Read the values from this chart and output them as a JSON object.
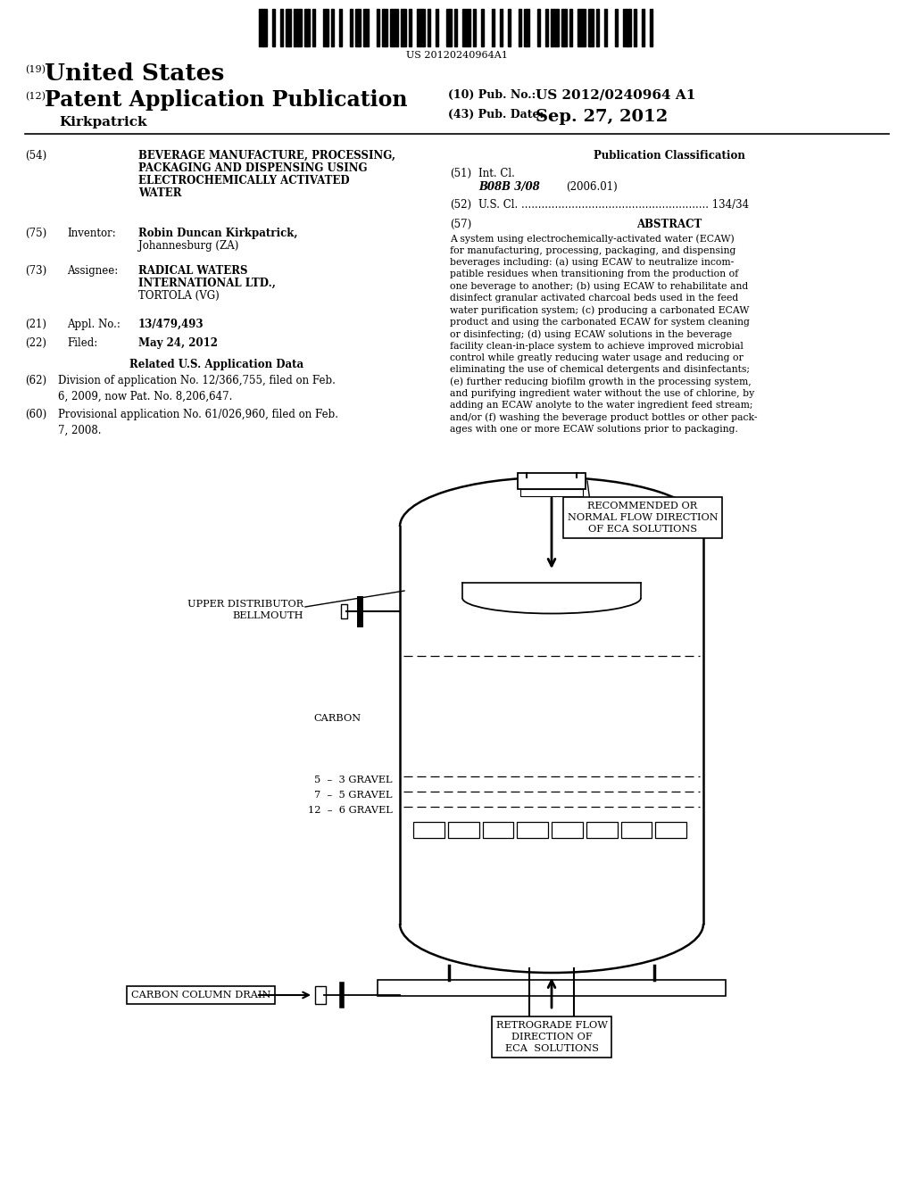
{
  "bg_color": "#ffffff",
  "barcode_text": "US 20120240964A1",
  "title_19": "(19)",
  "title_country": "United States",
  "title_12": "(12)",
  "title_pub": "Patent Application Publication",
  "title_inventor": "Kirkpatrick",
  "pub_no_label": "(10) Pub. No.:",
  "pub_no_value": "US 2012/0240964 A1",
  "pub_date_label": "(43) Pub. Date:",
  "pub_date_value": "Sep. 27, 2012",
  "field54_num": "(54)",
  "field54_text_line1": "BEVERAGE MANUFACTURE, PROCESSING,",
  "field54_text_line2": "PACKAGING AND DISPENSING USING",
  "field54_text_line3": "ELECTROCHEMICALLY ACTIVATED",
  "field54_text_line4": "WATER",
  "pub_class_header": "Publication Classification",
  "field51_num": "(51)",
  "field51_label": "Int. Cl.",
  "field51_class": "B08B 3/08",
  "field51_year": "(2006.01)",
  "field52_num": "(52)",
  "field52_text": "U.S. Cl. ........................................................ 134/34",
  "field75_num": "(75)",
  "field75_label": "Inventor:",
  "field75_val1": "Robin Duncan Kirkpatrick,",
  "field75_val2": "Johannesburg (ZA)",
  "field57_num": "(57)",
  "field57_label": "ABSTRACT",
  "abstract_text": "A system using electrochemically-activated water (ECAW)\nfor manufacturing, processing, packaging, and dispensing\nbeverages including: (a) using ECAW to neutralize incom-\npatible residues when transitioning from the production of\none beverage to another; (b) using ECAW to rehabilitate and\ndisinfect granular activated charcoal beds used in the feed\nwater purification system; (c) producing a carbonated ECAW\nproduct and using the carbonated ECAW for system cleaning\nor disinfecting; (d) using ECAW solutions in the beverage\nfacility clean-in-place system to achieve improved microbial\ncontrol while greatly reducing water usage and reducing or\neliminating the use of chemical detergents and disinfectants;\n(e) further reducing biofilm growth in the processing system,\nand purifying ingredient water without the use of chlorine, by\nadding an ECAW anolyte to the water ingredient feed stream;\nand/or (f) washing the beverage product bottles or other pack-\nages with one or more ECAW solutions prior to packaging.",
  "field73_num": "(73)",
  "field73_label": "Assignee:",
  "field73_val1": "RADICAL WATERS",
  "field73_val2": "INTERNATIONAL LTD.,",
  "field73_val3": "TORTOLA (VG)",
  "field21_num": "(21)",
  "field21_label": "Appl. No.:",
  "field21_value": "13/479,493",
  "field22_num": "(22)",
  "field22_label": "Filed:",
  "field22_value": "May 24, 2012",
  "related_header": "Related U.S. Application Data",
  "field62_num": "(62)",
  "field62_text": "Division of application No. 12/366,755, filed on Feb.\n6, 2009, now Pat. No. 8,206,647.",
  "field60_num": "(60)",
  "field60_text": "Provisional application No. 61/026,960, filed on Feb.\n7, 2008.",
  "diagram_label_top": "RECOMMENDED OR\nNORMAL FLOW DIRECTION\nOF ECA SOLUTIONS",
  "diagram_label_upper_dist": "UPPER DISTRIBUTOR\nBELLMOUTH",
  "diagram_label_carbon": "CARBON",
  "diagram_label_gravel1": "5  –  3 GRAVEL",
  "diagram_label_gravel2": "7  –  5 GRAVEL",
  "diagram_label_gravel3": "12  –  6 GRAVEL",
  "diagram_label_drain": "CARBON COLUMN DRAIN",
  "diagram_label_retro": "RETROGRADE FLOW\nDIRECTION OF\nECA  SOLUTIONS"
}
